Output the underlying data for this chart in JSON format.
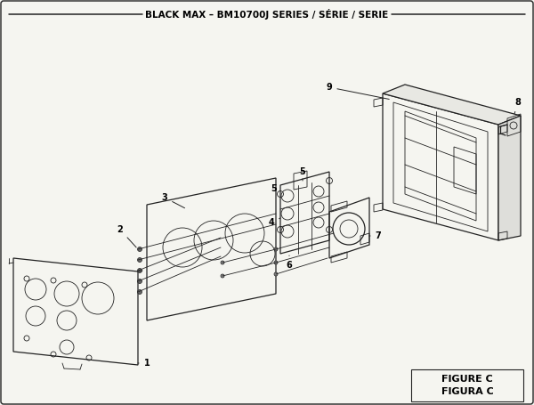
{
  "title": "BLACK MAX – BM10700J SERIES / SÉRIE / SERIE",
  "figure_label": "FIGURE C",
  "figura_label": "FIGURA C",
  "bg_color": "#f5f5f0",
  "border_color": "#222222",
  "line_color": "#222222",
  "fig_width": 6.0,
  "fig_height": 4.55,
  "dpi": 100
}
